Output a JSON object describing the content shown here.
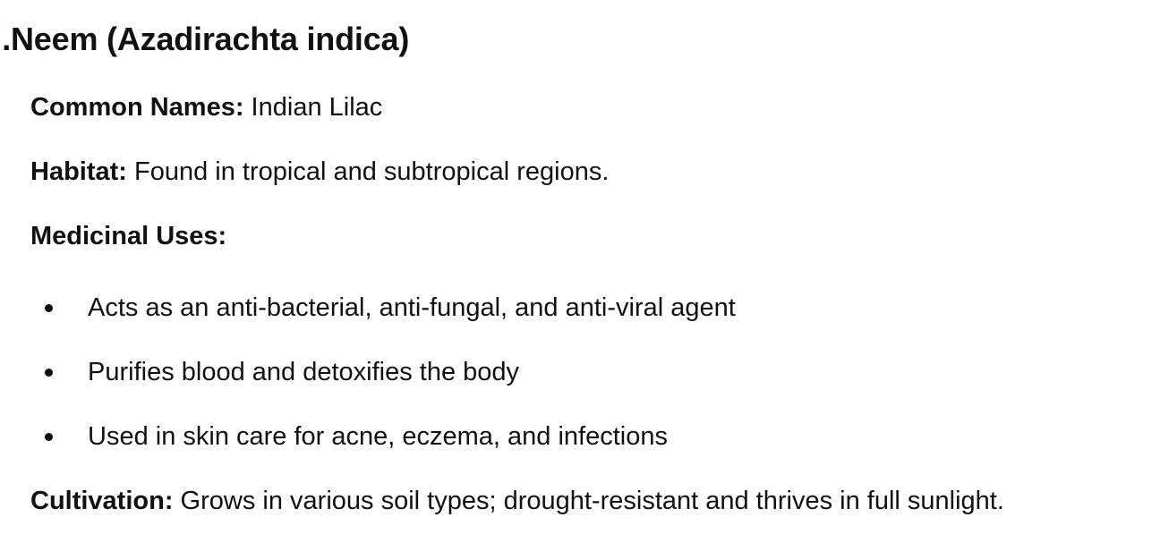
{
  "section": {
    "number_suffix": ".",
    "title": "Neem (Azadirachta indica)"
  },
  "common_names": {
    "label": "Common Names:",
    "value": " Indian Lilac"
  },
  "habitat": {
    "label": "Habitat:",
    "value": " Found in tropical and subtropical regions."
  },
  "medicinal_uses": {
    "label": "Medicinal Uses:",
    "items": [
      "Acts as an anti-bacterial, anti-fungal, and anti-viral agent",
      "Purifies blood and detoxifies the body",
      "Used in skin care for acne, eczema, and infections"
    ]
  },
  "cultivation": {
    "label": "Cultivation:",
    "value": " Grows in various soil types; drought-resistant and thrives in full sunlight."
  }
}
